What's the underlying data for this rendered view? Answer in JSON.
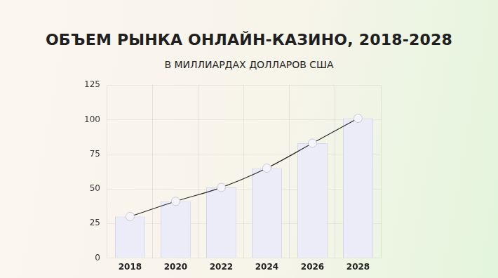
{
  "chart_data": {
    "type": "bar",
    "title": "ОБЪЕМ РЫНКА ОНЛАЙН-КАЗИНО, 2018-2028",
    "subtitle": "В МИЛЛИАРДАХ ДОЛЛАРОВ США",
    "categories": [
      "2018",
      "2020",
      "2022",
      "2024",
      "2026",
      "2028"
    ],
    "values": [
      30,
      41,
      51,
      65,
      83,
      101
    ],
    "color": "#ececf8",
    "marker": "circle",
    "line_style": "solid",
    "ylim": [
      0,
      125
    ],
    "yticks": [
      0,
      25,
      50,
      75,
      100,
      125
    ],
    "grid": true
  }
}
